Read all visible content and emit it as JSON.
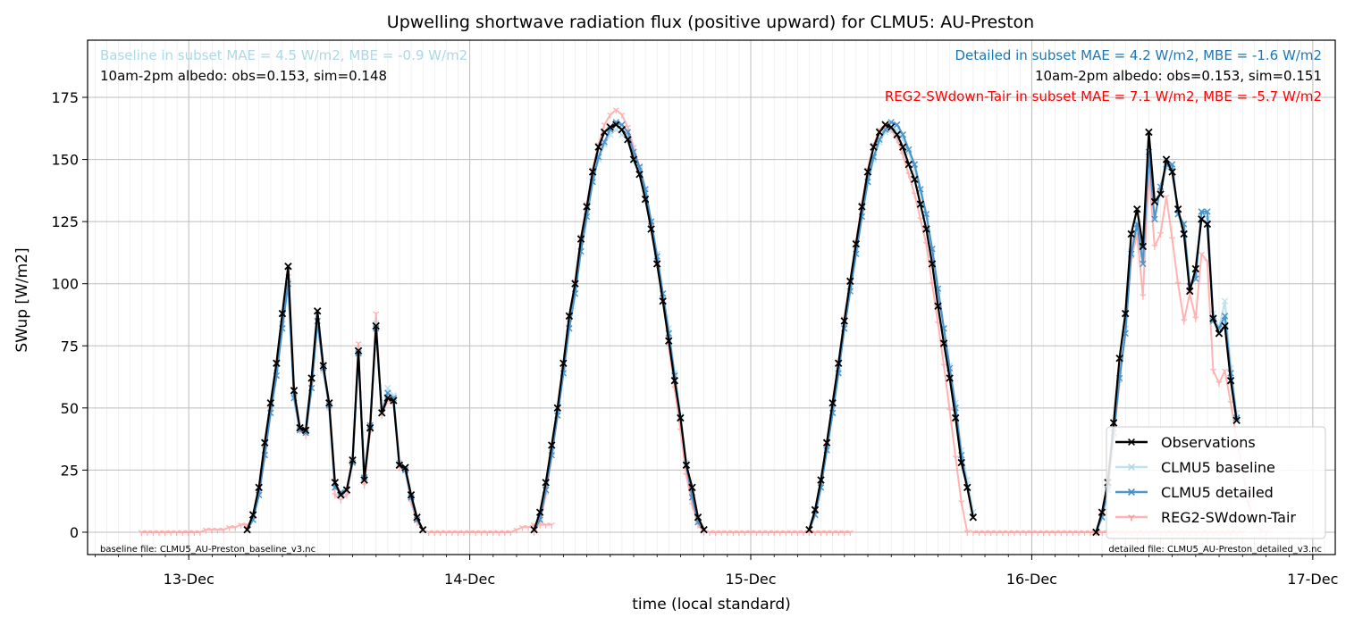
{
  "chart_data": {
    "type": "line",
    "title": "Upwelling shortwave radiation flux (positive upward) for CLMU5: AU-Preston",
    "xlabel": "time (local standard)",
    "ylabel": "SWup [W/m2]",
    "x_unit": "days since 13-Dec 00:00 (local standard)",
    "xlim": [
      -0.36,
      4.08
    ],
    "ylim": [
      -9,
      198
    ],
    "x_ticks": [
      {
        "value": 0,
        "label": "13-Dec"
      },
      {
        "value": 1,
        "label": "14-Dec"
      },
      {
        "value": 2,
        "label": "15-Dec"
      },
      {
        "value": 3,
        "label": "16-Dec"
      },
      {
        "value": 4,
        "label": "17-Dec"
      }
    ],
    "y_ticks": [
      0,
      25,
      50,
      75,
      100,
      125,
      150,
      175
    ],
    "grid": true,
    "legend_position": "lower-right",
    "annotations": {
      "baseline_stats": "Baseline in subset MAE = 4.5 W/m2, MBE = -0.9 W/m2",
      "baseline_albedo": "10am-2pm albedo: obs=0.153, sim=0.148",
      "detailed_stats": "Detailed in subset MAE = 4.2 W/m2, MBE = -1.6 W/m2",
      "detailed_albedo": "10am-2pm albedo: obs=0.153, sim=0.151",
      "reg2_stats": "REG2-SWdown-Tair in subset MAE = 7.1 W/m2, MBE = -5.7 W/m2",
      "baseline_file": "baseline file: CLMU5_AU-Preston_baseline_v3.nc",
      "detailed_file": "detailed file: CLMU5_AU-Preston_detailed_v3.nc"
    },
    "series": [
      {
        "name": "Observations",
        "color": "#000000",
        "marker": "x",
        "days": [
          {
            "start": 0.208,
            "values": [
              1,
              7,
              18,
              36,
              52,
              68,
              88,
              107,
              57,
              42,
              41,
              62,
              89,
              67,
              52,
              20,
              15,
              17,
              29,
              73,
              21,
              42,
              83,
              48,
              54,
              53,
              27,
              26,
              15,
              6,
              1
            ]
          },
          {
            "start": 1.229,
            "values": [
              1,
              8,
              20,
              35,
              50,
              68,
              87,
              100,
              118,
              131,
              145,
              155,
              161,
              163,
              164,
              162,
              158,
              150,
              144,
              134,
              122,
              108,
              93,
              77,
              61,
              46,
              27,
              18,
              6,
              1
            ]
          },
          {
            "start": 2.208,
            "values": [
              1,
              9,
              21,
              36,
              52,
              68,
              85,
              101,
              116,
              131,
              145,
              155,
              161,
              164,
              163,
              160,
              155,
              148,
              142,
              132,
              122,
              108,
              91,
              76,
              62,
              46,
              28,
              18,
              6
            ]
          },
          {
            "start": 3.229,
            "values": [
              0,
              8,
              20,
              44,
              70,
              88,
              120,
              130,
              115,
              161,
              133,
              136,
              150,
              145,
              130,
              120,
              97,
              106,
              126,
              124,
              86,
              80,
              83,
              61,
              45
            ]
          }
        ]
      },
      {
        "name": "CLMU5 baseline",
        "color": "#add8e6",
        "marker": "x",
        "days": [
          {
            "start": 0.208,
            "values": [
              1,
              5,
              16,
              33,
              50,
              66,
              84,
              101,
              55,
              42,
              40,
              58,
              85,
              65,
              50,
              18,
              16,
              17,
              28,
              72,
              22,
              43,
              84,
              48,
              58,
              55,
              28,
              25,
              14,
              5,
              1
            ]
          },
          {
            "start": 1.229,
            "values": [
              1,
              6,
              17,
              32,
              47,
              65,
              84,
              98,
              115,
              128,
              142,
              150,
              156,
              160,
              162,
              160,
              158,
              151,
              146,
              137,
              125,
              112,
              96,
              82,
              64,
              47,
              28,
              16,
              5,
              1
            ]
          },
          {
            "start": 2.208,
            "values": [
              1,
              7,
              18,
              34,
              48,
              65,
              82,
              98,
              113,
              127,
              141,
              150,
              157,
              161,
              162,
              162,
              158,
              153,
              146,
              137,
              127,
              113,
              97,
              82,
              67,
              52,
              33,
              21,
              8
            ]
          },
          {
            "start": 3.229,
            "values": [
              0,
              6,
              18,
              40,
              63,
              82,
              113,
              125,
              112,
              152,
              133,
              136,
              147,
              145,
              128,
              120,
              99,
              104,
              129,
              126,
              88,
              82,
              93,
              66,
              48
            ]
          }
        ]
      },
      {
        "name": "CLMU5 detailed",
        "color": "#3a8bc9",
        "marker": "x",
        "days": [
          {
            "start": 0.208,
            "values": [
              1,
              5,
              15,
              31,
              48,
              63,
              82,
              100,
              54,
              41,
              40,
              58,
              85,
              66,
              51,
              18,
              16,
              17,
              28,
              72,
              22,
              43,
              82,
              48,
              56,
              54,
              27,
              25,
              14,
              5,
              1
            ]
          },
          {
            "start": 1.229,
            "values": [
              1,
              5,
              17,
              31,
              47,
              64,
              82,
              96,
              113,
              127,
              141,
              151,
              157,
              162,
              165,
              164,
              161,
              153,
              147,
              138,
              125,
              111,
              96,
              80,
              63,
              46,
              27,
              14,
              4,
              1
            ]
          },
          {
            "start": 2.208,
            "values": [
              1,
              7,
              18,
              33,
              48,
              64,
              82,
              97,
              112,
              127,
              141,
              151,
              158,
              162,
              165,
              164,
              160,
              154,
              148,
              138,
              128,
              114,
              98,
              82,
              66,
              50,
              31,
              18,
              6
            ]
          },
          {
            "start": 3.229,
            "values": [
              0,
              6,
              17,
              40,
              62,
              80,
              112,
              124,
              108,
              153,
              126,
              139,
              148,
              148,
              128,
              124,
              99,
              102,
              129,
              129,
              85,
              82,
              87,
              64,
              46
            ]
          }
        ]
      },
      {
        "name": "REG2-SWdown-Tair",
        "color": "#ff9a9a",
        "marker": "1",
        "days": [
          {
            "start": -0.168,
            "values": [
              0,
              0,
              0,
              0,
              0,
              0,
              0,
              0,
              0,
              0,
              0,
              1,
              1,
              1,
              1,
              2,
              2,
              3,
              3
            ]
          },
          {
            "start": 0.208,
            "values": [
              2,
              7,
              15,
              30,
              50,
              62,
              84,
              103,
              55,
              41,
              39,
              60,
              85,
              65,
              50,
              15,
              13,
              15,
              28,
              76,
              19,
              40,
              88,
              47,
              53,
              52,
              26,
              25,
              12,
              4,
              1
            ]
          },
          {
            "start": 0.854,
            "values": [
              0,
              0,
              0,
              0,
              0,
              0,
              0,
              0,
              0,
              0,
              0,
              0,
              0,
              0,
              0,
              1,
              2,
              2,
              3,
              3,
              3,
              3
            ]
          },
          {
            "start": 1.229,
            "values": [
              0,
              4,
              15,
              31,
              47,
              66,
              87,
              101,
              119,
              132,
              146,
              156,
              164,
              168,
              170,
              168,
              163,
              155,
              147,
              137,
              124,
              108,
              93,
              75,
              58,
              41,
              23,
              11,
              3,
              0
            ]
          },
          {
            "start": 1.854,
            "values": [
              0,
              0,
              0,
              0,
              0,
              0,
              0,
              0,
              0,
              0,
              0,
              0,
              0,
              0,
              0,
              0,
              0,
              0,
              0,
              0,
              0,
              0,
              0,
              0,
              0
            ]
          },
          {
            "start": 2.208,
            "values": [
              0,
              8,
              19,
              35,
              52,
              68,
              86,
              101,
              117,
              132,
              146,
              156,
              162,
              164,
              162,
              158,
              152,
              144,
              136,
              126,
              116,
              100,
              84,
              67,
              49,
              30,
              12,
              0
            ]
          },
          {
            "start": 2.792,
            "values": [
              0,
              0,
              0,
              0,
              0,
              0,
              0,
              0,
              0,
              0,
              0,
              0,
              0,
              0,
              0,
              0,
              0,
              0,
              0,
              0,
              0,
              0,
              0,
              0,
              0,
              0,
              0,
              0,
              0,
              0,
              0,
              0,
              0,
              0,
              0,
              0,
              0,
              0,
              0,
              0,
              0,
              0,
              0,
              0,
              0,
              0,
              0
            ]
          },
          {
            "start": 3.229,
            "values": [
              0,
              7,
              18,
              38,
              60,
              82,
              110,
              120,
              95,
              145,
              115,
              120,
              135,
              118,
              100,
              85,
              96,
              86,
              112,
              109,
              65,
              60,
              65,
              52,
              38,
              25,
              12,
              4,
              1,
              0
            ]
          }
        ]
      }
    ]
  }
}
